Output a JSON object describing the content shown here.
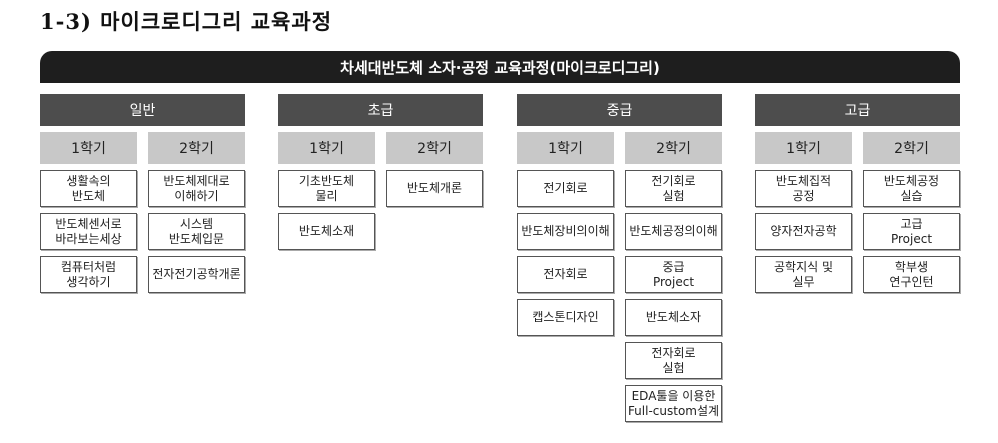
{
  "title": "1-3) 마이크로디그리 교육과정",
  "banner": "차세대반도체 소자·공정 교육과정(마이크로디그리)",
  "groups": [
    {
      "label": "일반",
      "semesters": [
        {
          "label": "1학기",
          "courses": [
            "생활속의\n반도체",
            "반도체센서로\n바라보는세상",
            "컴퓨터처럼\n생각하기"
          ]
        },
        {
          "label": "2학기",
          "courses": [
            "반도체제대로\n이해하기",
            "시스템\n반도체입문",
            "전자전기공학개론"
          ]
        }
      ]
    },
    {
      "label": "초급",
      "semesters": [
        {
          "label": "1학기",
          "courses": [
            "기초반도체\n물리",
            "반도체소재"
          ]
        },
        {
          "label": "2학기",
          "courses": [
            "반도체개론"
          ]
        }
      ]
    },
    {
      "label": "중급",
      "semesters": [
        {
          "label": "1학기",
          "courses": [
            "전기회로",
            "반도체장비의이해",
            "전자회로",
            "캡스톤디자인"
          ]
        },
        {
          "label": "2학기",
          "courses": [
            "전기회로\n실험",
            "반도체공정의이해",
            "중급\nProject",
            "반도체소자",
            "전자회로\n실험",
            "EDA툴을 이용한\nFull-custom설계"
          ]
        }
      ]
    },
    {
      "label": "고급",
      "semesters": [
        {
          "label": "1학기",
          "courses": [
            "반도체집적\n공정",
            "양자전자공학",
            "공학지식 및\n실무"
          ]
        },
        {
          "label": "2학기",
          "courses": [
            "반도체공정\n실습",
            "고급\nProject",
            "학부생\n연구인턴"
          ]
        }
      ]
    }
  ]
}
